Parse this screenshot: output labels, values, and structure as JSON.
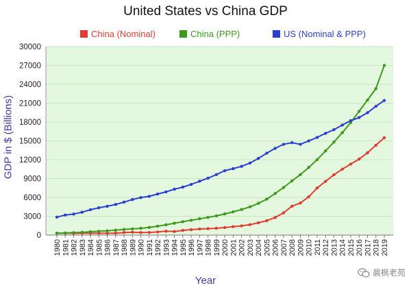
{
  "chart_data": {
    "type": "line",
    "title": "United States vs China GDP",
    "xlabel": "Year",
    "ylabel": "GDP in $ (Billions)",
    "ylim": [
      0,
      30000
    ],
    "yticks": [
      "0",
      "3000",
      "6000",
      "9000",
      "12000",
      "15000",
      "18000",
      "21000",
      "24000",
      "27000",
      "30000"
    ],
    "x": [
      "1980",
      "1981",
      "1982",
      "1983",
      "1984",
      "1985",
      "1986",
      "1987",
      "1988",
      "1989",
      "1990",
      "1991",
      "1992",
      "1993",
      "1994",
      "1995",
      "1996",
      "1997",
      "1998",
      "1999",
      "2000",
      "2001",
      "2002",
      "2003",
      "2004",
      "2005",
      "2006",
      "2007",
      "2008",
      "2009",
      "2010",
      "2011",
      "2012",
      "2013",
      "2014",
      "2015",
      "2016",
      "2017",
      "2018",
      "2019"
    ],
    "grid": true,
    "legend_position": "top",
    "series": [
      {
        "name": "China (Nominal)",
        "color": "#e03c31",
        "values": [
          300,
          290,
          280,
          300,
          310,
          310,
          300,
          320,
          410,
          460,
          400,
          420,
          500,
          620,
          580,
          750,
          870,
          970,
          1030,
          1090,
          1200,
          1340,
          1470,
          1660,
          1960,
          2300,
          2800,
          3550,
          4600,
          5100,
          6100,
          7500,
          8550,
          9600,
          10500,
          11300,
          12100,
          13100,
          14300,
          15500
        ]
      },
      {
        "name": "China (PPP)",
        "color": "#3d9a1c",
        "values": [
          300,
          340,
          390,
          450,
          540,
          620,
          690,
          790,
          910,
          990,
          1080,
          1220,
          1420,
          1640,
          1890,
          2130,
          2370,
          2600,
          2820,
          3060,
          3370,
          3700,
          4070,
          4500,
          5050,
          5730,
          6620,
          7570,
          8630,
          9620,
          10760,
          12000,
          13400,
          14800,
          16300,
          17900,
          19700,
          21500,
          23300,
          27000
        ]
      },
      {
        "name": "US (Nominal & PPP)",
        "color": "#2b3fd1",
        "values": [
          2860,
          3200,
          3350,
          3640,
          4040,
          4350,
          4590,
          4880,
          5250,
          5660,
          5980,
          6170,
          6540,
          6880,
          7310,
          7640,
          8070,
          8580,
          9060,
          9630,
          10250,
          10580,
          10940,
          11460,
          12210,
          13040,
          13810,
          14450,
          14710,
          14450,
          14990,
          15540,
          16200,
          16780,
          17520,
          18220,
          18710,
          19480,
          20500,
          21430
        ]
      }
    ]
  },
  "watermark": {
    "text": "晨枫老苑"
  }
}
